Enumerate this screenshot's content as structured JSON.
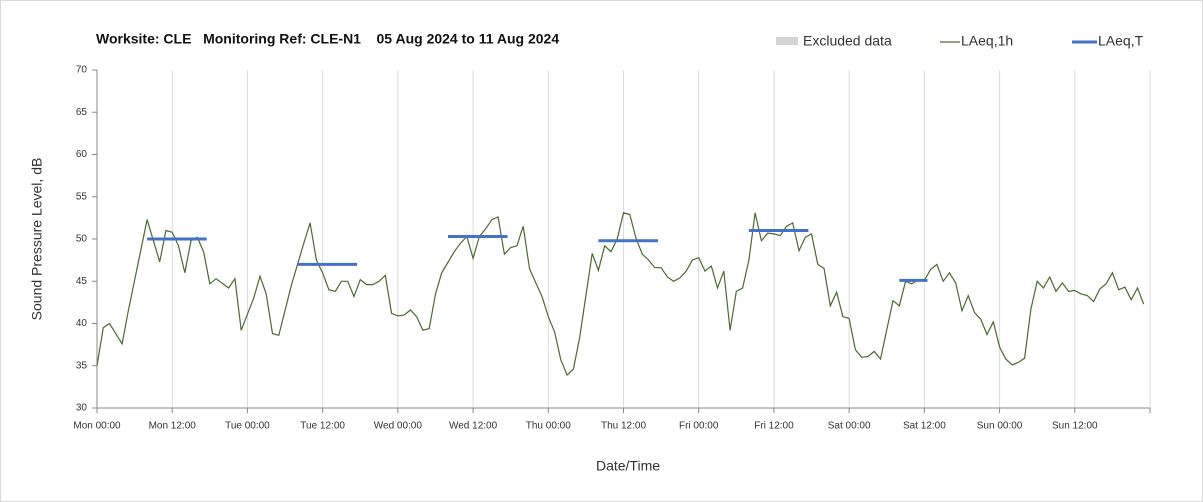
{
  "chart_data": {
    "type": "line",
    "title": "Worksite: CLE   Monitoring Ref: CLE-N1    05 Aug 2024 to 11 Aug 2024",
    "xlabel": "Date/Time",
    "ylabel": "Sound Pressure Level, dB",
    "xlim": [
      0,
      168
    ],
    "ylim": [
      30,
      70
    ],
    "yticks": [
      30,
      35,
      40,
      45,
      50,
      55,
      60,
      65,
      70
    ],
    "xticks": [
      {
        "value": 0,
        "label": "Mon 00:00"
      },
      {
        "value": 12,
        "label": "Mon 12:00"
      },
      {
        "value": 24,
        "label": "Tue 00:00"
      },
      {
        "value": 36,
        "label": "Tue 12:00"
      },
      {
        "value": 48,
        "label": "Wed 00:00"
      },
      {
        "value": 60,
        "label": "Wed 12:00"
      },
      {
        "value": 72,
        "label": "Thu 00:00"
      },
      {
        "value": 84,
        "label": "Thu 12:00"
      },
      {
        "value": 96,
        "label": "Fri 00:00"
      },
      {
        "value": 108,
        "label": "Fri 12:00"
      },
      {
        "value": 120,
        "label": "Sat 00:00"
      },
      {
        "value": 132,
        "label": "Sat 12:00"
      },
      {
        "value": 144,
        "label": "Sun 00:00"
      },
      {
        "value": 156,
        "label": "Sun 12:00"
      },
      {
        "value": 168,
        "label": ""
      }
    ],
    "grid": true,
    "excluded_data": {
      "name": "Excluded data",
      "color": "#d4d4d4"
    },
    "series": [
      {
        "name": "LAeq,1h",
        "color": "#4a6b2e",
        "x": [
          0,
          1,
          2,
          4,
          5,
          8,
          10,
          11,
          12,
          13,
          14,
          15,
          16,
          17,
          18,
          19,
          21,
          22,
          23,
          25,
          26,
          27,
          28,
          29,
          31,
          33,
          34,
          35,
          36,
          37,
          38,
          39,
          40,
          41,
          42,
          43,
          44,
          45,
          46,
          47,
          48,
          49,
          50,
          51,
          52,
          53,
          54,
          55,
          57,
          58,
          59,
          60,
          61,
          62,
          63,
          64,
          65,
          66,
          67,
          68,
          69,
          70,
          71,
          72,
          73,
          74,
          75,
          76,
          77,
          79,
          80,
          81,
          82,
          83,
          84,
          85,
          86,
          87,
          88,
          89,
          90,
          91,
          92,
          93,
          94,
          95,
          96,
          97,
          98,
          99,
          100,
          101,
          102,
          103,
          104,
          105,
          106,
          107,
          108,
          109,
          110,
          111,
          112,
          113,
          114,
          115,
          116,
          117,
          118,
          119,
          120,
          121,
          122,
          123,
          124,
          125,
          127,
          128,
          129,
          130,
          131,
          132,
          133,
          134,
          135,
          136,
          137,
          138,
          139,
          140,
          141,
          142,
          143,
          144,
          145,
          146,
          147,
          148,
          149,
          150,
          151,
          152,
          153,
          154,
          155,
          156,
          157,
          158,
          159,
          160,
          161,
          162,
          163,
          164,
          165,
          166,
          167
        ],
        "values": [
          35,
          39.5,
          40,
          37.6,
          41.5,
          52.3,
          47.3,
          51,
          50.8,
          49.2,
          46,
          49.8,
          50.2,
          48.5,
          44.7,
          45.3,
          44.2,
          45.3,
          39.2,
          43,
          45.6,
          43.5,
          38.8,
          38.6,
          44.5,
          49.5,
          51.9,
          47.5,
          46,
          44,
          43.8,
          45,
          45,
          43.2,
          45.2,
          44.6,
          44.6,
          45,
          45.7,
          41.2,
          40.9,
          41,
          41.6,
          40.8,
          39.2,
          39.4,
          43.5,
          46,
          48.5,
          49.5,
          50.3,
          47.7,
          50.3,
          51.2,
          52.3,
          52.6,
          48.2,
          49,
          49.2,
          51.5,
          46.5,
          44.8,
          43.2,
          40.8,
          39,
          35.7,
          33.9,
          34.6,
          38.3,
          48.3,
          46.3,
          49.2,
          48.5,
          50,
          53.1,
          52.9,
          50.1,
          48.2,
          47.5,
          46.6,
          46.6,
          45.5,
          45,
          45.4,
          46.2,
          47.5,
          47.8,
          46.2,
          46.8,
          44.2,
          46.2,
          39.2,
          43.8,
          44.2,
          47.5,
          53.1,
          49.8,
          50.7,
          50.6,
          50.4,
          51.5,
          51.9,
          48.6,
          50.2,
          50.6,
          47,
          46.5,
          42.1,
          43.7,
          40.8,
          40.6,
          36.9,
          36,
          36.1,
          36.7,
          35.8,
          42.7,
          42.1,
          45,
          44.7,
          45.2,
          45.1,
          46.4,
          47,
          45,
          46,
          44.8,
          41.5,
          43.3,
          41.3,
          40.5,
          38.7,
          40.2,
          37.2,
          35.8,
          35.1,
          35.4,
          35.9,
          41.7,
          45,
          44.2,
          45.5,
          43.8,
          44.8,
          43.8,
          43.9,
          43.5,
          43.3,
          42.6,
          44.1,
          44.7,
          46,
          44,
          44.3,
          42.8,
          44.2,
          42.3
        ]
      },
      {
        "name": "LAeq,T",
        "color": "#4472c4",
        "periods": [
          {
            "start": 8,
            "end": 17.5,
            "value": 50
          },
          {
            "start": 32,
            "end": 41.5,
            "value": 47
          },
          {
            "start": 56,
            "end": 65.5,
            "value": 50.3
          },
          {
            "start": 80,
            "end": 89.5,
            "value": 49.8
          },
          {
            "start": 104,
            "end": 113.5,
            "value": 51
          },
          {
            "start": 128,
            "end": 132.5,
            "value": 45.1
          }
        ]
      }
    ]
  }
}
